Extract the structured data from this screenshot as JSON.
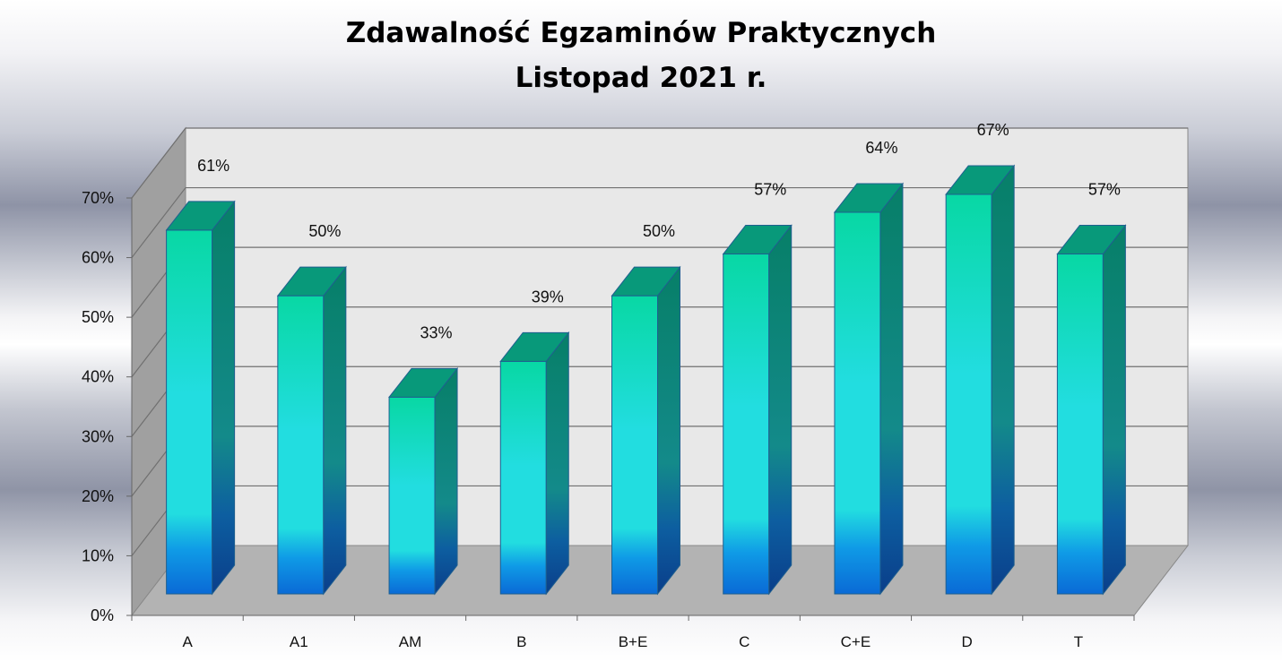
{
  "chart_data": {
    "type": "bar",
    "title": "Zdawalność Egzaminów Praktycznych",
    "subtitle": "Listopad 2021 r.",
    "categories": [
      "A",
      "A1",
      "AM",
      "B",
      "B+E",
      "C",
      "C+E",
      "D",
      "T"
    ],
    "values": [
      61,
      50,
      33,
      39,
      50,
      57,
      64,
      67,
      57
    ],
    "value_labels": [
      "61%",
      "50%",
      "33%",
      "39%",
      "50%",
      "57%",
      "64%",
      "67%",
      "57%"
    ],
    "y_ticks": [
      "0%",
      "10%",
      "20%",
      "30%",
      "40%",
      "50%",
      "60%",
      "70%"
    ],
    "ylim": [
      0,
      70
    ],
    "grid": true,
    "style": "3d-column",
    "colors": {
      "bar_front_top": "#08d8a4",
      "bar_front_mid": "#22dde0",
      "bar_front_bottom": "#0a6ad6",
      "bar_top": "#08997a",
      "bar_side": "#078067",
      "back_wall": "#e8e8e8",
      "side_wall": "#a0a0a0",
      "floor": "#b3b3b3",
      "gridline": "#707070"
    }
  }
}
